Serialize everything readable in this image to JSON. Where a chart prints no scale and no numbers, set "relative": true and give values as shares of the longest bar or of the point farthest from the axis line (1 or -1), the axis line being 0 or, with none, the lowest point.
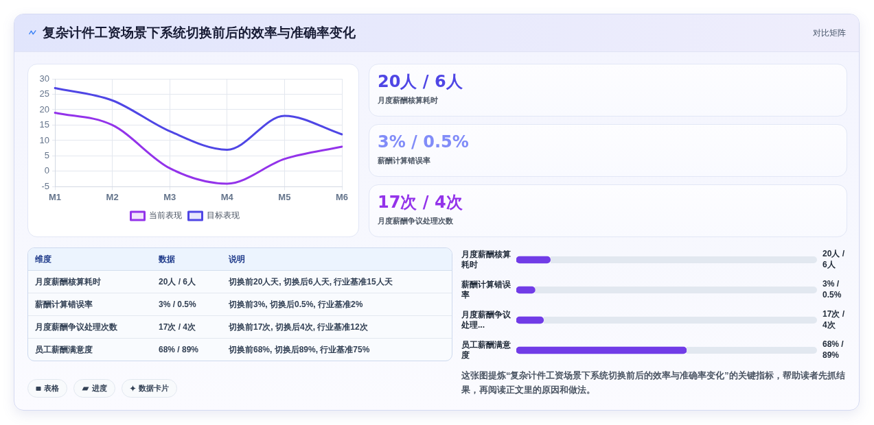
{
  "chart_data": [
    {
      "type": "other",
      "title": "复杂计件工资场景下系统切换前后的效率与准确率变化",
      "annotations": [
        "对比矩阵"
      ]
    },
    {
      "type": "line",
      "categories": [
        "M1",
        "M2",
        "M3",
        "M4",
        "M5",
        "M6"
      ],
      "series": [
        {
          "name": "当前表现",
          "color": "#9333ea",
          "values": [
            19,
            15,
            1,
            -4,
            4,
            8
          ]
        },
        {
          "name": "目标表现",
          "color": "#4f46e5",
          "values": [
            27,
            23,
            13,
            7,
            18,
            12
          ]
        }
      ],
      "ylim": [
        -5,
        30
      ],
      "yticks": [
        -5,
        0,
        5,
        10,
        15,
        20,
        25,
        30
      ],
      "grid": true,
      "legend": "bottom",
      "marker": "none",
      "line_style": "solid"
    },
    {
      "type": "other",
      "annotations": [
        "20人 / 6人",
        "月度薪酬核算耗时",
        "3% / 0.5%",
        "薪酬计算错误率",
        "17次 / 4次",
        "月度薪酬争议处理次数"
      ]
    },
    {
      "type": "other",
      "annotations": [
        "维度",
        "数据",
        "说明",
        "月度薪酬核算耗时",
        "20人 / 6人",
        "切换前20人天, 切换后6人天, 行业基准15人天",
        "薪酬计算错误率",
        "3% / 0.5%",
        "切换前3%, 切换后0.5%, 行业基准2%",
        "月度薪酬争议处理次数",
        "17次 / 4次",
        "切换前17次, 切换后4次, 行业基准12次",
        "员工薪酬满意度",
        "68% / 89%",
        "切换前68%, 切换后89%, 行业基准75%"
      ]
    },
    {
      "type": "bar",
      "orientation": "horizontal",
      "relative": true,
      "categories": [
        "月度薪酬核算耗时",
        "薪酬计算错误率",
        "月度薪酬争议处理...",
        "员工薪酬满意度"
      ],
      "values": [
        0.2,
        0.11,
        0.16,
        1
      ],
      "color": "#713ce7",
      "annotations": [
        "20人 / 6人",
        "3% / 0.5%",
        "17次 / 4次",
        "68% / 89%"
      ]
    },
    {
      "type": "other",
      "annotations": [
        "表格",
        "进度",
        "数据卡片",
        "这张图提炼“复杂计件工资场景下系统切换前后的效率与准确率变化”的关键指标，帮助读者先抓结果，再阅读正文里的原因和做法。"
      ]
    }
  ]
}
